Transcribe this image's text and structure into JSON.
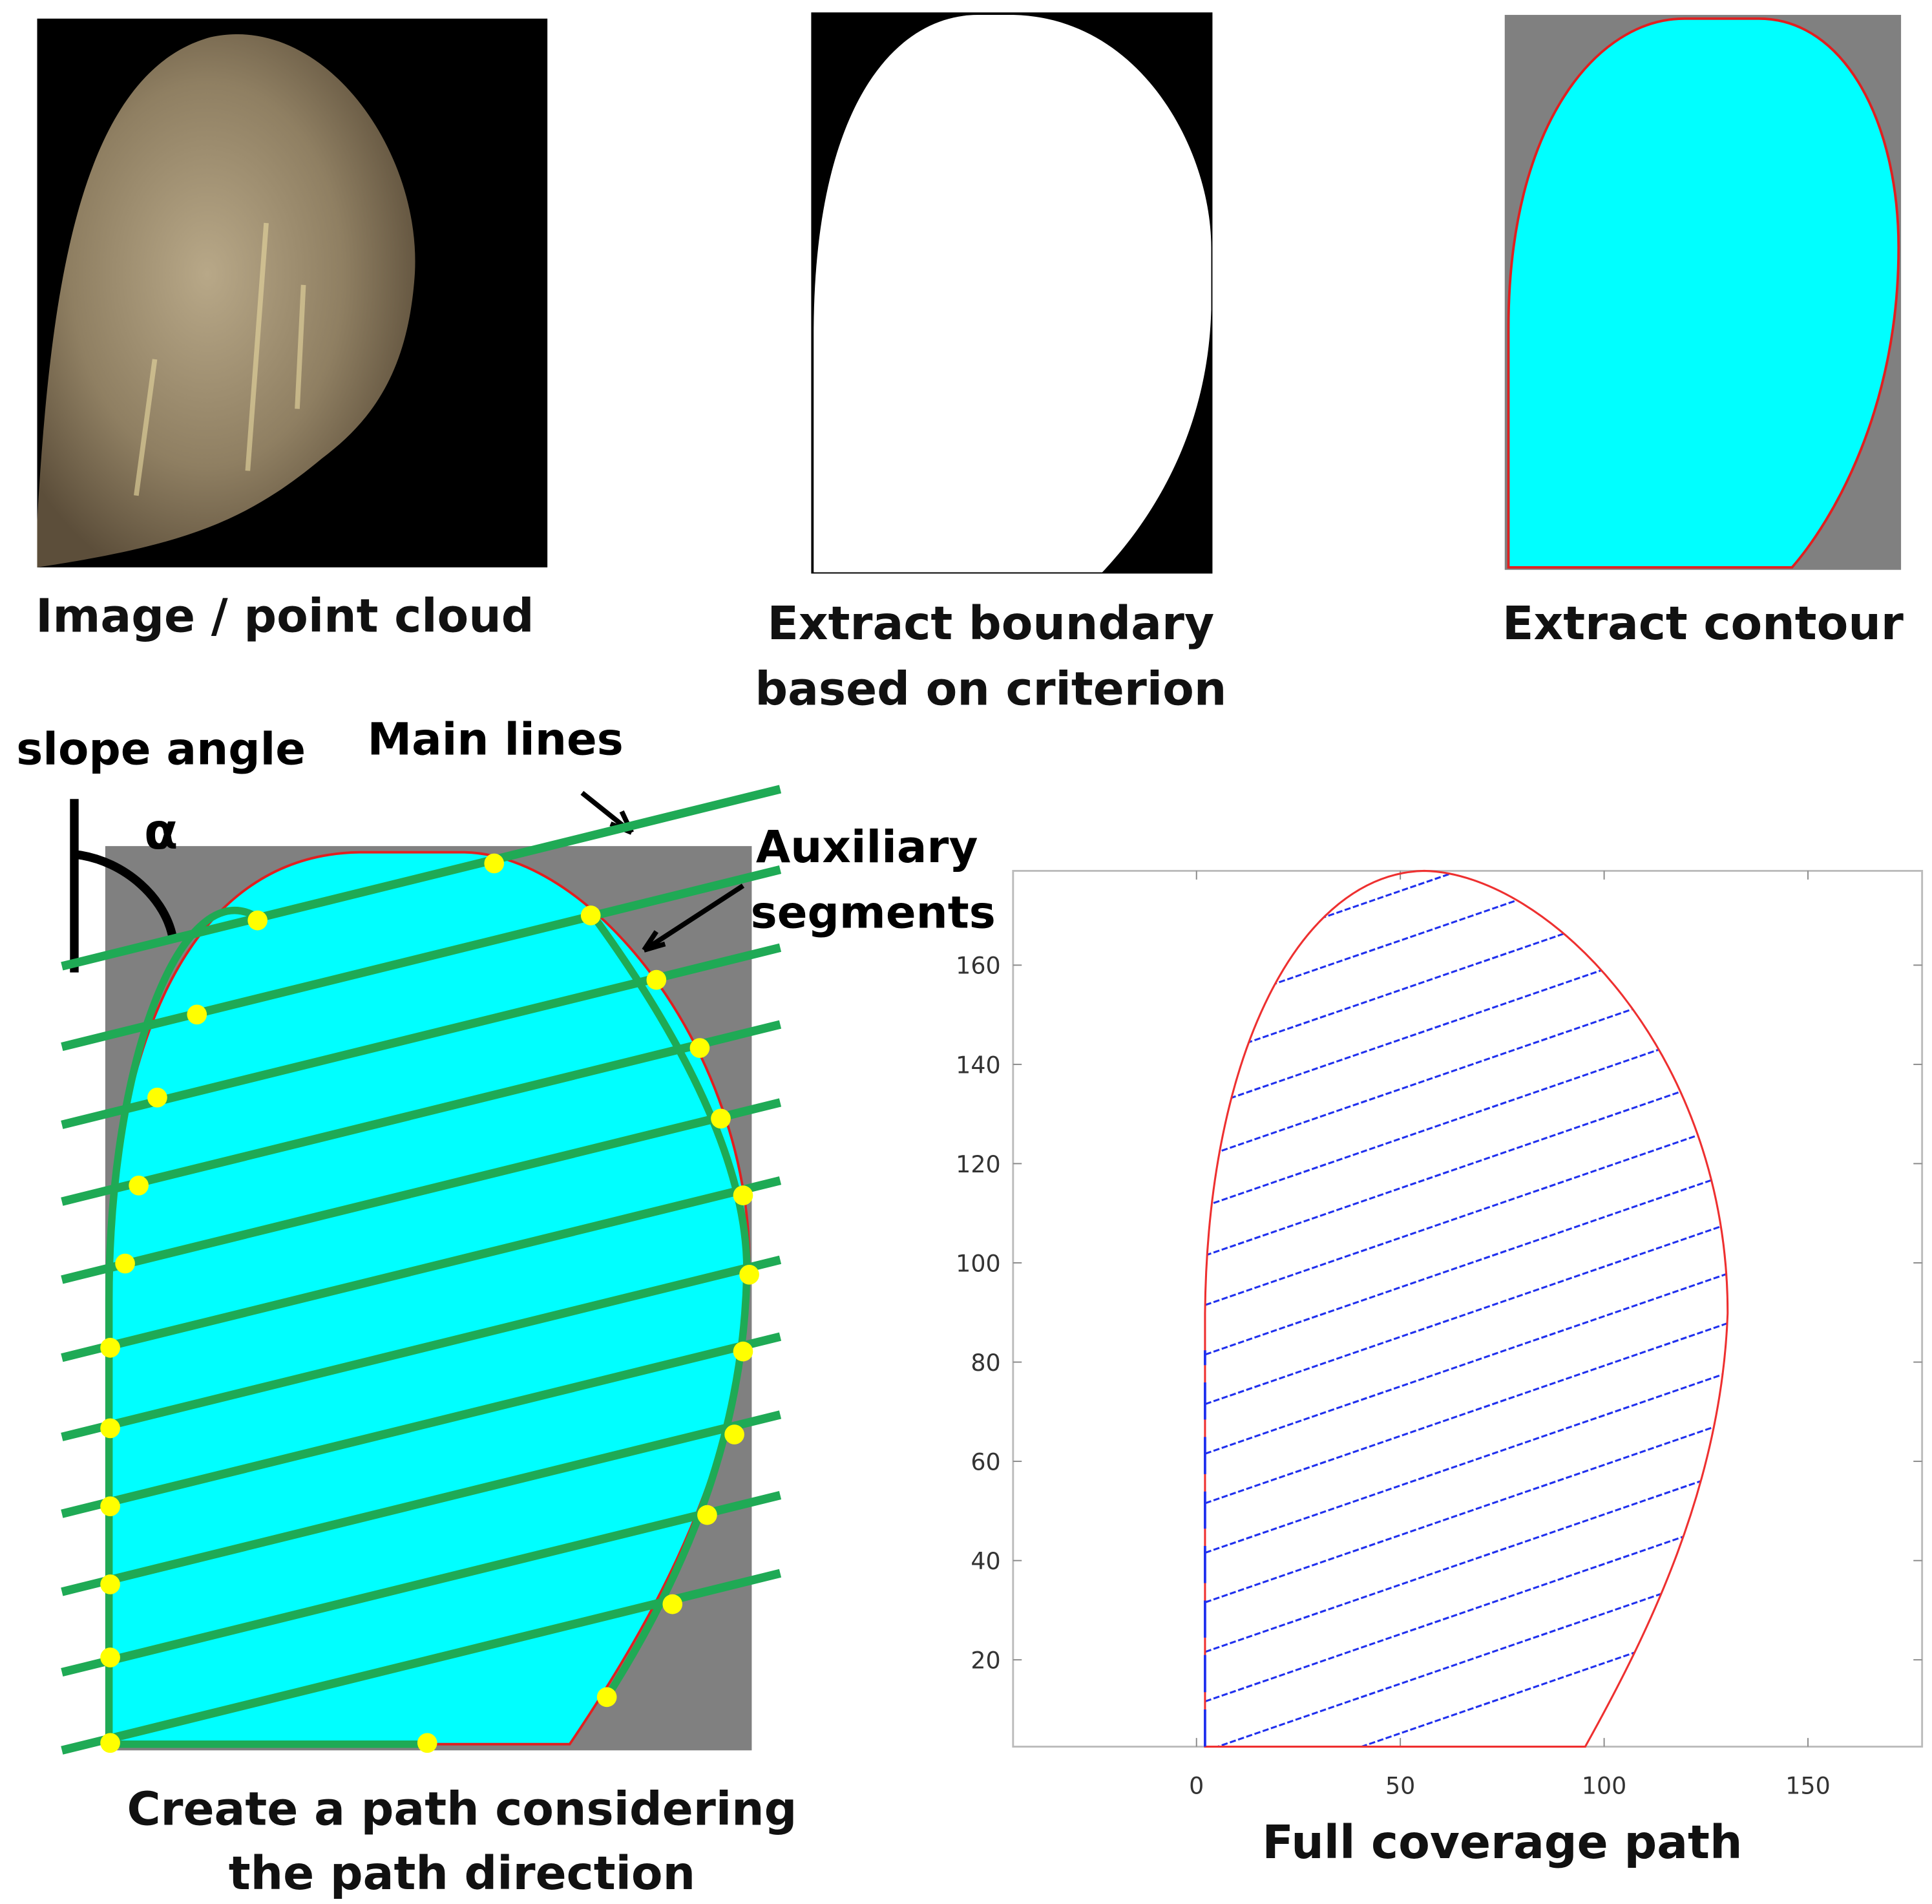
{
  "panels": [
    {
      "caption": [
        "Image / point cloud"
      ]
    },
    {
      "caption": [
        "Extract boundary",
        "based on criterion"
      ]
    },
    {
      "caption": [
        "Extract contour"
      ]
    },
    {
      "caption": [
        "Create a path considering",
        "the path direction"
      ],
      "labels": {
        "slope": "slope angle",
        "alpha": "α",
        "main": "Main lines",
        "aux": [
          "Auxiliary",
          "segments"
        ]
      }
    }
  ],
  "plot": {
    "caption": "Full coverage path",
    "xlim": [
      -45,
      178
    ],
    "ylim": [
      2.5,
      179
    ],
    "xticks": [
      0,
      50,
      100,
      150
    ],
    "yticks": [
      20,
      40,
      60,
      80,
      100,
      120,
      140,
      160
    ]
  }
}
